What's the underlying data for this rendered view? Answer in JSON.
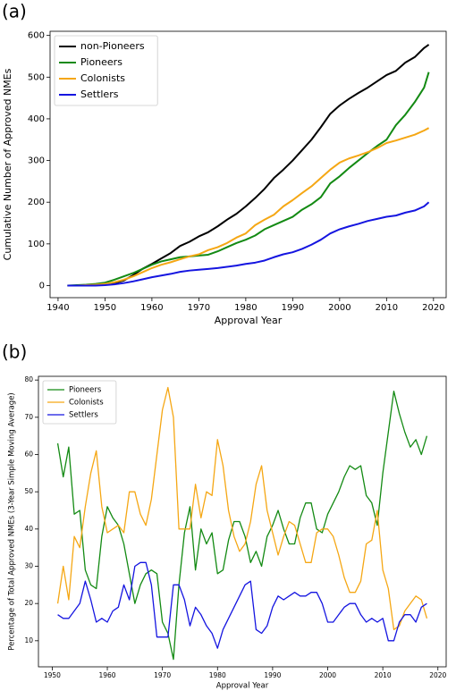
{
  "chart_data": [
    {
      "type": "line",
      "label": "(a)",
      "xlabel": "Approval Year",
      "ylabel": "Cumulative Number of Approved NMEs",
      "xlim": [
        1938.3,
        2022.7
      ],
      "xticks": [
        1940,
        1950,
        1960,
        1970,
        1980,
        1990,
        2000,
        2010,
        2020
      ],
      "ylim": [
        -29,
        610
      ],
      "yticks": [
        0,
        100,
        200,
        300,
        400,
        500,
        600
      ],
      "legend": "upper left",
      "x": [
        1942,
        1944,
        1946,
        1948,
        1950,
        1952,
        1954,
        1956,
        1958,
        1960,
        1962,
        1964,
        1966,
        1968,
        1970,
        1972,
        1974,
        1976,
        1978,
        1980,
        1982,
        1984,
        1986,
        1988,
        1990,
        1992,
        1994,
        1996,
        1998,
        2000,
        2002,
        2004,
        2006,
        2008,
        2010,
        2012,
        2014,
        2016,
        2018,
        2019
      ],
      "series": [
        {
          "name": "non-Pioneers",
          "color": "#000000",
          "values": [
            0,
            0,
            0,
            1,
            3,
            6,
            12,
            25,
            40,
            52,
            65,
            78,
            95,
            105,
            118,
            128,
            142,
            158,
            172,
            190,
            210,
            232,
            258,
            278,
            300,
            325,
            350,
            380,
            412,
            432,
            448,
            462,
            475,
            490,
            505,
            515,
            535,
            548,
            570,
            578
          ]
        },
        {
          "name": "Pioneers",
          "color": "#138a13",
          "values": [
            0,
            1,
            2,
            4,
            7,
            14,
            22,
            30,
            40,
            50,
            58,
            63,
            68,
            70,
            72,
            74,
            82,
            92,
            102,
            110,
            120,
            135,
            145,
            155,
            165,
            182,
            195,
            212,
            245,
            262,
            282,
            300,
            318,
            335,
            350,
            385,
            410,
            440,
            475,
            512
          ]
        },
        {
          "name": "Colonists",
          "color": "#f5a714",
          "values": [
            0,
            0,
            1,
            2,
            4,
            8,
            14,
            22,
            32,
            42,
            50,
            56,
            63,
            70,
            75,
            85,
            92,
            102,
            115,
            125,
            145,
            158,
            170,
            190,
            205,
            222,
            238,
            258,
            278,
            295,
            305,
            312,
            320,
            330,
            342,
            348,
            355,
            362,
            372,
            378
          ]
        },
        {
          "name": "Settlers",
          "color": "#1515e0",
          "values": [
            0,
            0,
            0,
            0,
            1,
            3,
            6,
            10,
            15,
            20,
            24,
            28,
            33,
            36,
            38,
            40,
            42,
            45,
            48,
            52,
            55,
            60,
            68,
            75,
            80,
            88,
            98,
            110,
            125,
            135,
            142,
            148,
            155,
            160,
            165,
            168,
            175,
            180,
            190,
            200
          ]
        }
      ]
    },
    {
      "type": "line",
      "label": "(b)",
      "xlabel": "Approval Year",
      "ylabel": "Percentage of Total Approved NMEs (3-Year Simple Moving Average)",
      "xlim": [
        1947.5,
        2021.5
      ],
      "xticks": [
        1950,
        1960,
        1970,
        1980,
        1990,
        2000,
        2010,
        2020
      ],
      "ylim": [
        3,
        81
      ],
      "yticks": [
        10,
        20,
        30,
        40,
        50,
        60,
        70,
        80
      ],
      "legend": "upper left",
      "x": [
        1951,
        1952,
        1953,
        1954,
        1955,
        1956,
        1957,
        1958,
        1959,
        1960,
        1961,
        1962,
        1963,
        1964,
        1965,
        1966,
        1967,
        1968,
        1969,
        1970,
        1971,
        1972,
        1973,
        1974,
        1975,
        1976,
        1977,
        1978,
        1979,
        1980,
        1981,
        1982,
        1983,
        1984,
        1985,
        1986,
        1987,
        1988,
        1989,
        1990,
        1991,
        1992,
        1993,
        1994,
        1995,
        1996,
        1997,
        1998,
        1999,
        2000,
        2001,
        2002,
        2003,
        2004,
        2005,
        2006,
        2007,
        2008,
        2009,
        2010,
        2011,
        2012,
        2013,
        2014,
        2015,
        2016,
        2017,
        2018
      ],
      "series": [
        {
          "name": "Pioneers",
          "color": "#138a13",
          "values": [
            63,
            54,
            62,
            44,
            45,
            29,
            25,
            24,
            38,
            46,
            43,
            41,
            36,
            28,
            20,
            25,
            28,
            29,
            28,
            15,
            12,
            5,
            25,
            39,
            46,
            29,
            40,
            36,
            39,
            28,
            29,
            37,
            42,
            42,
            38,
            31,
            34,
            30,
            38,
            41,
            45,
            40,
            36,
            36,
            43,
            47,
            47,
            40,
            39,
            44,
            47,
            50,
            54,
            57,
            56,
            57,
            49,
            47,
            41,
            55,
            66,
            77,
            71,
            66,
            62,
            64,
            60,
            65
          ]
        },
        {
          "name": "Colonists",
          "color": "#f5a714",
          "values": [
            20,
            30,
            21,
            38,
            35,
            46,
            55,
            61,
            46,
            39,
            40,
            41,
            39,
            50,
            50,
            44,
            41,
            48,
            60,
            72,
            78,
            70,
            40,
            40,
            40,
            52,
            43,
            50,
            49,
            64,
            57,
            45,
            38,
            34,
            36,
            42,
            52,
            57,
            45,
            39,
            33,
            38,
            42,
            41,
            36,
            31,
            31,
            39,
            40,
            40,
            38,
            33,
            27,
            23,
            23,
            26,
            36,
            37,
            45,
            29,
            24,
            13,
            14,
            18,
            20,
            22,
            21,
            16
          ]
        },
        {
          "name": "Settlers",
          "color": "#1515e0",
          "values": [
            17,
            16,
            16,
            18,
            20,
            26,
            21,
            15,
            16,
            15,
            18,
            19,
            25,
            21,
            30,
            31,
            31,
            25,
            11,
            11,
            11,
            25,
            25,
            21,
            14,
            19,
            17,
            14,
            12,
            8,
            13,
            16,
            19,
            22,
            25,
            26,
            13,
            12,
            14,
            19,
            22,
            21,
            22,
            23,
            22,
            22,
            23,
            23,
            20,
            15,
            15,
            17,
            19,
            20,
            20,
            17,
            15,
            16,
            15,
            16,
            10,
            10,
            15,
            17,
            17,
            15,
            19,
            20
          ]
        }
      ]
    }
  ]
}
